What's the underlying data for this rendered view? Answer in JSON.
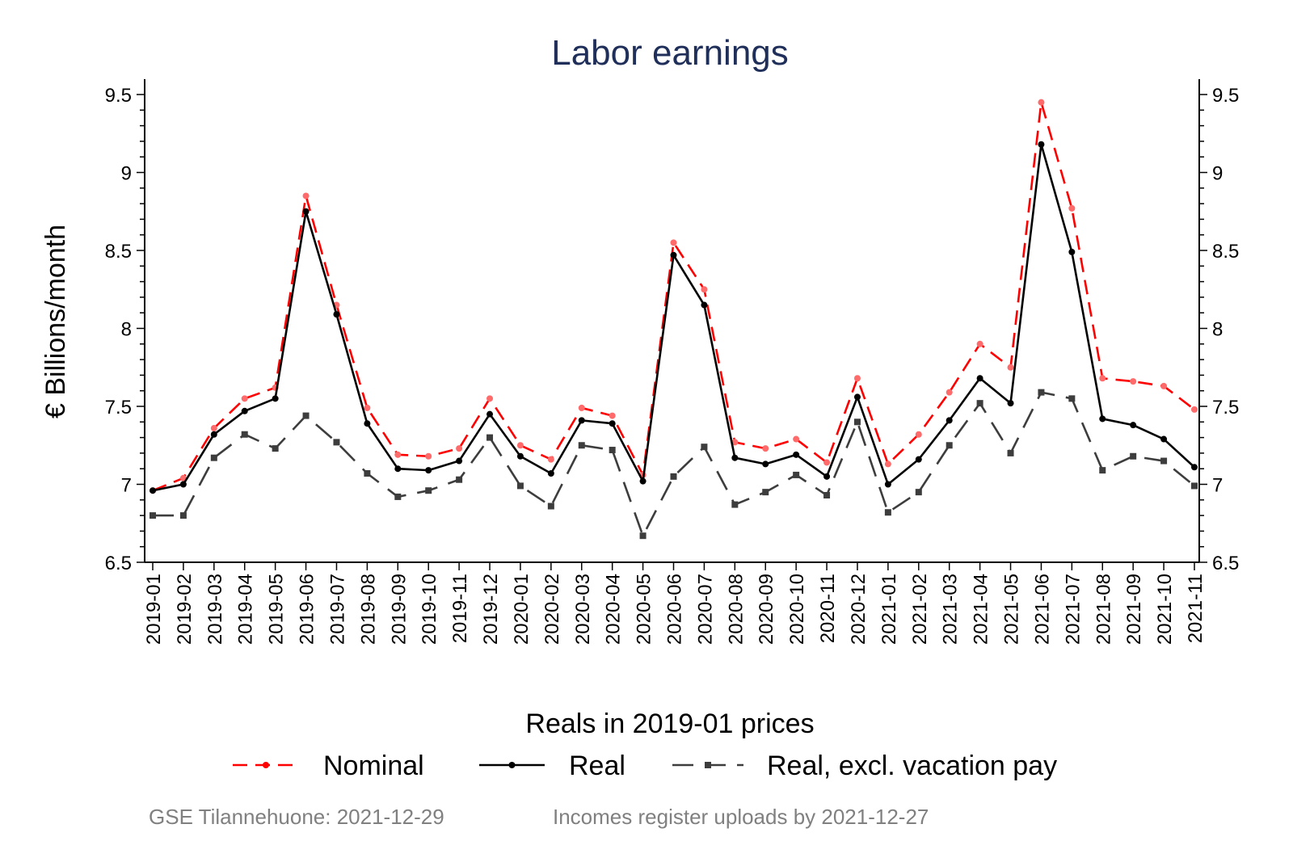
{
  "chart_data": {
    "type": "line",
    "title": "Labor earnings",
    "ylabel": "€ Billions/month",
    "ylim": [
      6.5,
      9.6
    ],
    "y_ticks": [
      {
        "value": 6.5,
        "label": "6.5"
      },
      {
        "value": 7,
        "label": "7"
      },
      {
        "value": 7.5,
        "label": "7.5"
      },
      {
        "value": 8,
        "label": "8"
      },
      {
        "value": 8.5,
        "label": "8.5"
      },
      {
        "value": 9,
        "label": "9"
      },
      {
        "value": 9.5,
        "label": "9.5"
      }
    ],
    "minor_y_step": 0.1,
    "secondary_y_axis": true,
    "grid": false,
    "categories": [
      "2019-01",
      "2019-02",
      "2019-03",
      "2019-04",
      "2019-05",
      "2019-06",
      "2019-07",
      "2019-08",
      "2019-09",
      "2019-10",
      "2019-11",
      "2019-12",
      "2020-01",
      "2020-02",
      "2020-03",
      "2020-04",
      "2020-05",
      "2020-06",
      "2020-07",
      "2020-08",
      "2020-09",
      "2020-10",
      "2020-11",
      "2020-12",
      "2021-01",
      "2021-02",
      "2021-03",
      "2021-04",
      "2021-05",
      "2021-06",
      "2021-07",
      "2021-08",
      "2021-09",
      "2021-10",
      "2021-11"
    ],
    "series": [
      {
        "name": "Nominal",
        "color": "#ff0000",
        "dash": "dashed",
        "marker": "circle",
        "values": [
          6.96,
          7.04,
          7.36,
          7.55,
          7.62,
          8.85,
          8.15,
          7.49,
          7.19,
          7.18,
          7.23,
          7.55,
          7.25,
          7.16,
          7.49,
          7.44,
          7.06,
          8.55,
          8.25,
          7.27,
          7.23,
          7.29,
          7.14,
          7.68,
          7.13,
          7.32,
          7.59,
          7.9,
          7.75,
          9.45,
          8.77,
          7.68,
          7.66,
          7.63,
          7.48
        ]
      },
      {
        "name": "Real",
        "color": "#000000",
        "dash": "solid",
        "marker": "circle",
        "values": [
          6.96,
          7.0,
          7.32,
          7.47,
          7.55,
          8.75,
          8.09,
          7.39,
          7.1,
          7.09,
          7.15,
          7.45,
          7.18,
          7.07,
          7.41,
          7.39,
          7.02,
          8.47,
          8.15,
          7.17,
          7.13,
          7.19,
          7.05,
          7.56,
          7.0,
          7.16,
          7.41,
          7.68,
          7.52,
          9.18,
          8.49,
          7.42,
          7.38,
          7.29,
          7.11
        ]
      },
      {
        "name": "Real, excl. vacation pay",
        "color": "#3d3d3d",
        "dash": "longdash",
        "marker": "square",
        "values": [
          6.8,
          6.8,
          7.17,
          7.32,
          7.23,
          7.44,
          7.27,
          7.07,
          6.92,
          6.96,
          7.03,
          7.3,
          6.99,
          6.86,
          7.25,
          7.22,
          6.67,
          7.05,
          7.24,
          6.87,
          6.95,
          7.06,
          6.93,
          7.4,
          6.82,
          6.95,
          7.25,
          7.52,
          7.2,
          7.59,
          7.55,
          7.09,
          7.18,
          7.15,
          6.99
        ]
      }
    ],
    "legend": {
      "title": "Reals in 2019-01 prices",
      "position": "bottom"
    }
  },
  "notes": {
    "left": "GSE Tilannehuone: 2021-12-29",
    "right": "Incomes register uploads by 2021-12-27"
  }
}
